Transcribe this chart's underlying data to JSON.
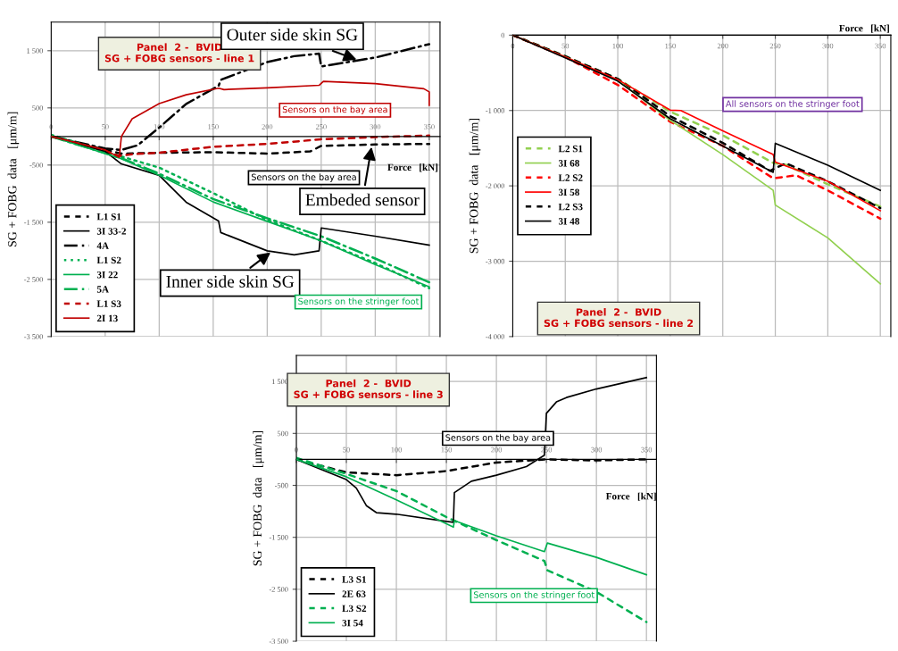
{
  "chart_data": [
    {
      "type": "line",
      "title": "Panel  2 -  BVID\nSG + FOBG sensors - line 1",
      "xlabel": "Force   [kN]",
      "ylabel": "SG + FOBG  data   [μm/m]",
      "xlim": [
        0,
        360
      ],
      "xticks": [
        0,
        50,
        100,
        150,
        200,
        250,
        300,
        350
      ],
      "ylim": [
        -3500,
        2000
      ],
      "yticks": [
        {
          "value": 1500,
          "label": "1 500"
        },
        500,
        {
          "value": -500,
          "label": "-500"
        },
        {
          "value": -1500,
          "label": "-1 500"
        },
        {
          "value": -2500,
          "label": "-2 500"
        },
        {
          "value": -3500,
          "label": "-3 500"
        }
      ],
      "grid": true,
      "legend": "bottom left",
      "marker": "none",
      "series": [
        {
          "name": "L1 S1",
          "color": "#000000",
          "line_style": "dashed",
          "x": [
            0,
            50,
            65,
            100,
            150,
            200,
            240,
            250,
            300,
            350
          ],
          "values": [
            0,
            -230,
            -300,
            -285,
            -275,
            -300,
            -260,
            -165,
            -140,
            -130
          ]
        },
        {
          "name": "3I 33-2",
          "color": "#000000",
          "line_style": "solid",
          "x": [
            0,
            50,
            65,
            100,
            125,
            155,
            157,
            200,
            225,
            248,
            250,
            300,
            350
          ],
          "values": [
            0,
            -260,
            -480,
            -680,
            -1150,
            -1480,
            -1680,
            -2000,
            -2070,
            -2000,
            -1600,
            -1745,
            -1900
          ]
        },
        {
          "name": "4A",
          "color": "#000000",
          "line_style": "dashdot",
          "x": [
            0,
            50,
            65,
            80,
            100,
            125,
            155,
            157,
            200,
            225,
            248,
            250,
            300,
            350
          ],
          "values": [
            0,
            -210,
            -235,
            -155,
            155,
            570,
            885,
            990,
            1300,
            1405,
            1450,
            1225,
            1380,
            1615
          ]
        },
        {
          "name": "L1 S2",
          "color": "#00b050",
          "line_style": "dotted",
          "x": [
            0,
            65,
            100,
            150,
            200,
            250,
            300,
            350
          ],
          "values": [
            30,
            -350,
            -545,
            -990,
            -1460,
            -1825,
            -2215,
            -2655
          ]
        },
        {
          "name": "3I 22",
          "color": "#00b050",
          "line_style": "solid",
          "x": [
            0,
            65,
            100,
            150,
            200,
            250,
            300,
            350
          ],
          "values": [
            0,
            -390,
            -680,
            -1145,
            -1485,
            -1825,
            -2240,
            -2630
          ]
        },
        {
          "name": "5A",
          "color": "#00b050",
          "line_style": "dashdot",
          "x": [
            0,
            65,
            100,
            150,
            200,
            250,
            300,
            350
          ],
          "values": [
            0,
            -380,
            -650,
            -1095,
            -1430,
            -1745,
            -2135,
            -2550
          ]
        },
        {
          "name": "L1 S3",
          "color": "#c00000",
          "line_style": "dashed",
          "x": [
            0,
            50,
            63,
            75,
            100,
            150,
            200,
            250,
            300,
            350
          ],
          "values": [
            0,
            -250,
            -340,
            -310,
            -285,
            -180,
            -130,
            -50,
            -10,
            15
          ]
        },
        {
          "name": "2I 13",
          "color": "#c00000",
          "line_style": "solid",
          "x": [
            0,
            50,
            63,
            65,
            75,
            100,
            125,
            155,
            160,
            200,
            248,
            252,
            300,
            345,
            350,
            350
          ],
          "values": [
            0,
            -235,
            -365,
            0,
            310,
            575,
            730,
            845,
            820,
            850,
            895,
            965,
            925,
            835,
            780,
            545
          ]
        }
      ],
      "annotations": [
        {
          "text": "Outer side skin SG",
          "x": 285,
          "y": 1330
        },
        "Sensors on the bay area",
        "Sensors on the bay area",
        {
          "text": "Embeded sensor",
          "x": 297,
          "y": -140
        },
        {
          "text": "Inner side skin SG",
          "x": 205,
          "y": -2000
        },
        "Sensors on the stringer foot"
      ]
    },
    {
      "type": "line",
      "title": "Panel  2 -  BVID\nSG + FOBG sensors - line 2",
      "xlabel": "Force   [kN]",
      "ylabel": "SG + FOBG  data   [μm/m]",
      "xlim": [
        0,
        360
      ],
      "xticks": [
        0,
        50,
        100,
        150,
        200,
        250,
        300,
        350
      ],
      "ylim": [
        -4000,
        0
      ],
      "yticks": [
        0,
        {
          "value": -1000,
          "label": "-1 000"
        },
        {
          "value": -2000,
          "label": "-2 000"
        },
        {
          "value": -3000,
          "label": "-3 000"
        },
        {
          "value": -4000,
          "label": "-4 000"
        }
      ],
      "grid": true,
      "legend": "left",
      "marker": "none",
      "series": [
        {
          "name": "L2 S1",
          "color": "#92d050",
          "line_style": "dashed",
          "x": [
            0,
            50,
            100,
            150,
            200,
            248,
            260,
            300,
            350
          ],
          "values": [
            0,
            -280,
            -580,
            -1015,
            -1330,
            -1695,
            -1720,
            -1980,
            -2275
          ]
        },
        {
          "name": "3I 68",
          "color": "#92d050",
          "line_style": "solid",
          "x": [
            0,
            50,
            100,
            150,
            200,
            248,
            250,
            300,
            350
          ],
          "values": [
            0,
            -290,
            -600,
            -1130,
            -1585,
            -2060,
            -2255,
            -2690,
            -3300
          ]
        },
        {
          "name": "L2 S2",
          "color": "#ff0000",
          "line_style": "dashed",
          "x": [
            0,
            50,
            100,
            150,
            200,
            248,
            270,
            300,
            350
          ],
          "values": [
            0,
            -290,
            -660,
            -1150,
            -1470,
            -1900,
            -1860,
            -2060,
            -2435
          ]
        },
        {
          "name": "3I 58",
          "color": "#ff0000",
          "line_style": "solid",
          "x": [
            0,
            50,
            100,
            150,
            160,
            200,
            248,
            250,
            300,
            350
          ],
          "values": [
            0,
            -290,
            -590,
            -995,
            -1000,
            -1270,
            -1585,
            -1685,
            -1940,
            -2330
          ]
        },
        {
          "name": "L2 S3",
          "color": "#000000",
          "line_style": "dashed",
          "x": [
            0,
            50,
            100,
            150,
            200,
            245,
            260,
            300,
            350
          ],
          "values": [
            0,
            -280,
            -580,
            -1075,
            -1430,
            -1800,
            -1700,
            -1940,
            -2295
          ]
        },
        {
          "name": "3I 48",
          "color": "#000000",
          "line_style": "solid",
          "x": [
            0,
            50,
            100,
            150,
            200,
            248,
            250,
            300,
            350
          ],
          "values": [
            0,
            -300,
            -610,
            -1110,
            -1470,
            -1820,
            -1435,
            -1725,
            -2060
          ]
        }
      ],
      "annotations": [
        "All sensors on the stringer foot"
      ]
    },
    {
      "type": "line",
      "title": "Panel  2 -  BVID\nSG + FOBG sensors - line 3",
      "xlabel": "Force   [kN]",
      "ylabel": "SG + FOBG  data   [μm/m]",
      "xlim": [
        0,
        360
      ],
      "xticks": [
        0,
        50,
        100,
        150,
        200,
        250,
        300,
        350
      ],
      "ylim": [
        -3500,
        2000
      ],
      "yticks": [
        {
          "value": 1500,
          "label": "1 500"
        },
        500,
        {
          "value": -500,
          "label": "-500"
        },
        {
          "value": -1500,
          "label": "-1 500"
        },
        {
          "value": -2500,
          "label": "-2 500"
        },
        {
          "value": -3500,
          "label": "-3 500"
        }
      ],
      "grid": true,
      "legend": "bottom left",
      "marker": "none",
      "series": [
        {
          "name": "L3 S1",
          "color": "#000000",
          "line_style": "dashed",
          "x": [
            0,
            50,
            100,
            150,
            200,
            250,
            300,
            350
          ],
          "values": [
            0,
            -250,
            -305,
            -225,
            -60,
            0,
            -20,
            0
          ]
        },
        {
          "name": "2E 63",
          "color": "#000000",
          "line_style": "solid",
          "x": [
            0,
            50,
            60,
            70,
            80,
            100,
            150,
            157,
            158,
            175,
            200,
            230,
            248,
            250,
            260,
            270,
            300,
            350
          ],
          "values": [
            0,
            -390,
            -555,
            -890,
            -1025,
            -1055,
            -1195,
            -1210,
            -640,
            -420,
            -305,
            -140,
            80,
            885,
            1105,
            1190,
            1355,
            1575
          ]
        },
        {
          "name": "L3 S2",
          "color": "#00b050",
          "line_style": "dashed",
          "x": [
            0,
            50,
            100,
            150,
            200,
            248,
            251,
            300,
            350
          ],
          "values": [
            30,
            -280,
            -610,
            -1110,
            -1555,
            -1955,
            -2135,
            -2550,
            -3130
          ]
        },
        {
          "name": "3I 54",
          "color": "#00b050",
          "line_style": "solid",
          "x": [
            0,
            50,
            100,
            157,
            158,
            200,
            248,
            251,
            300,
            350
          ],
          "values": [
            0,
            -335,
            -780,
            -1305,
            -1180,
            -1470,
            -1775,
            -1610,
            -1885,
            -2220
          ]
        }
      ],
      "annotations": [
        "Sensors on the bay area",
        "Sensors on the stringer foot"
      ]
    }
  ]
}
